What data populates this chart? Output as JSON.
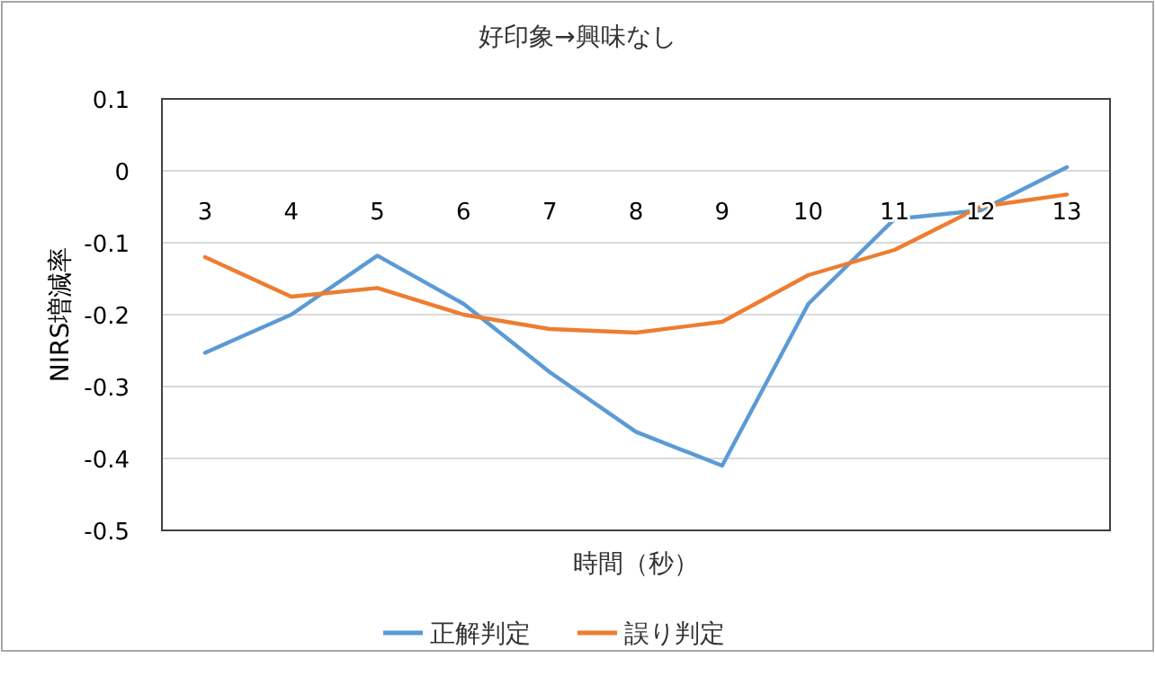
{
  "chart_data": {
    "type": "line",
    "title": "好印象→興味なし",
    "xlabel": "時間（秒）",
    "ylabel": "NIRS増減率",
    "categories": [
      "3",
      "4",
      "5",
      "6",
      "7",
      "8",
      "9",
      "10",
      "11",
      "12",
      "13"
    ],
    "series": [
      {
        "name": "正解判定",
        "color": "#5b9bd5",
        "values": [
          -0.253,
          -0.2,
          -0.118,
          -0.185,
          -0.28,
          -0.363,
          -0.41,
          -0.185,
          -0.067,
          -0.055,
          0.005
        ]
      },
      {
        "name": "誤り判定",
        "color": "#ed7d31",
        "values": [
          -0.12,
          -0.175,
          -0.163,
          -0.2,
          -0.22,
          -0.225,
          -0.21,
          -0.145,
          -0.11,
          -0.05,
          -0.033
        ]
      }
    ],
    "ylim": [
      -0.5,
      0.1
    ],
    "yticks": [
      -0.5,
      -0.4,
      -0.3,
      -0.2,
      -0.1,
      0,
      0.1
    ],
    "grid": "y",
    "legend": "bottom",
    "marker": "none",
    "line_style": "solid"
  }
}
